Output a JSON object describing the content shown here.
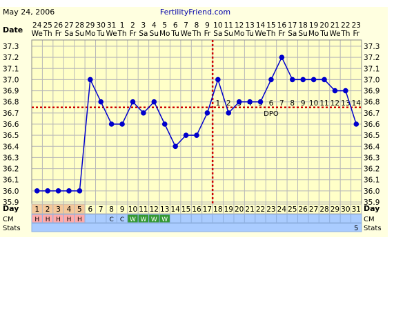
{
  "header": {
    "date": "May 24, 2006",
    "site": "FertilityFriend.com"
  },
  "colors": {
    "plot_bg": "#ffffc8",
    "page_bg": "#ffffe0",
    "grid": "#b8b8b8",
    "line": "#0000cc",
    "ref_dotted": "#cc0000",
    "link": "#0000aa",
    "lh_bg": "#f4c89a",
    "strip_bg": "#aaccff",
    "cm_h_bg": "#ffaaaa",
    "cm_w_bg": "#339933"
  },
  "row_labels": {
    "date": "Date",
    "day": "Day",
    "cm": "CM",
    "stats": "Stats",
    "dpo": "DPO"
  },
  "chart_data": {
    "type": "line",
    "x_dates": [
      "24",
      "25",
      "26",
      "27",
      "28",
      "29",
      "30",
      "31",
      "1",
      "2",
      "3",
      "4",
      "5",
      "6",
      "7",
      "8",
      "9",
      "10",
      "11",
      "12",
      "13",
      "14",
      "15",
      "16",
      "17",
      "18",
      "19",
      "20",
      "21",
      "22",
      "23"
    ],
    "x_weekdays": [
      "We",
      "Th",
      "Fr",
      "Sa",
      "Su",
      "Mo",
      "Tu",
      "We",
      "Th",
      "Fr",
      "Sa",
      "Su",
      "Mo",
      "Tu",
      "We",
      "Th",
      "Fr",
      "Sa",
      "Su",
      "Mo",
      "Tu",
      "We",
      "Th",
      "Fr",
      "Sa",
      "Su",
      "Mo",
      "Tu",
      "We",
      "Th",
      "Fr"
    ],
    "cycle_days": [
      "1",
      "2",
      "3",
      "4",
      "5",
      "6",
      "7",
      "8",
      "9",
      "10",
      "11",
      "12",
      "13",
      "14",
      "15",
      "16",
      "17",
      "18",
      "19",
      "20",
      "21",
      "22",
      "23",
      "24",
      "25",
      "26",
      "27",
      "28",
      "29",
      "30",
      "31"
    ],
    "temps": [
      36.0,
      36.0,
      36.0,
      36.0,
      36.0,
      37.0,
      36.8,
      36.6,
      36.6,
      36.8,
      36.7,
      36.8,
      36.6,
      36.4,
      36.5,
      36.5,
      36.7,
      37.0,
      36.7,
      36.8,
      36.8,
      36.8,
      37.0,
      37.2,
      37.0,
      37.0,
      37.0,
      37.0,
      36.9,
      36.9,
      36.6
    ],
    "y_ticks": [
      "37.3",
      "37.2",
      "37.1",
      "37.0",
      "36.9",
      "36.8",
      "36.7",
      "36.6",
      "36.5",
      "36.4",
      "36.3",
      "36.2",
      "36.1",
      "36.0",
      "35.9"
    ],
    "ylim": [
      35.9,
      37.3
    ],
    "coverline": 36.75,
    "ovulation_day_index": 16,
    "dpo_labels": [
      "1",
      "2",
      "3",
      "4",
      "5",
      "6",
      "7",
      "8",
      "9",
      "10",
      "11",
      "12",
      "13",
      "14"
    ],
    "dpo_start_index": 17,
    "cm": [
      "H",
      "H",
      "H",
      "H",
      "H",
      "",
      "",
      "C",
      "C",
      "W",
      "W",
      "W",
      "W",
      "",
      "",
      "",
      "",
      "",
      "",
      "",
      "",
      "",
      "",
      "",
      "",
      "",
      "",
      "",
      "",
      "",
      ""
    ],
    "lh_days": 5,
    "stats_value": "5",
    "grid": true
  }
}
